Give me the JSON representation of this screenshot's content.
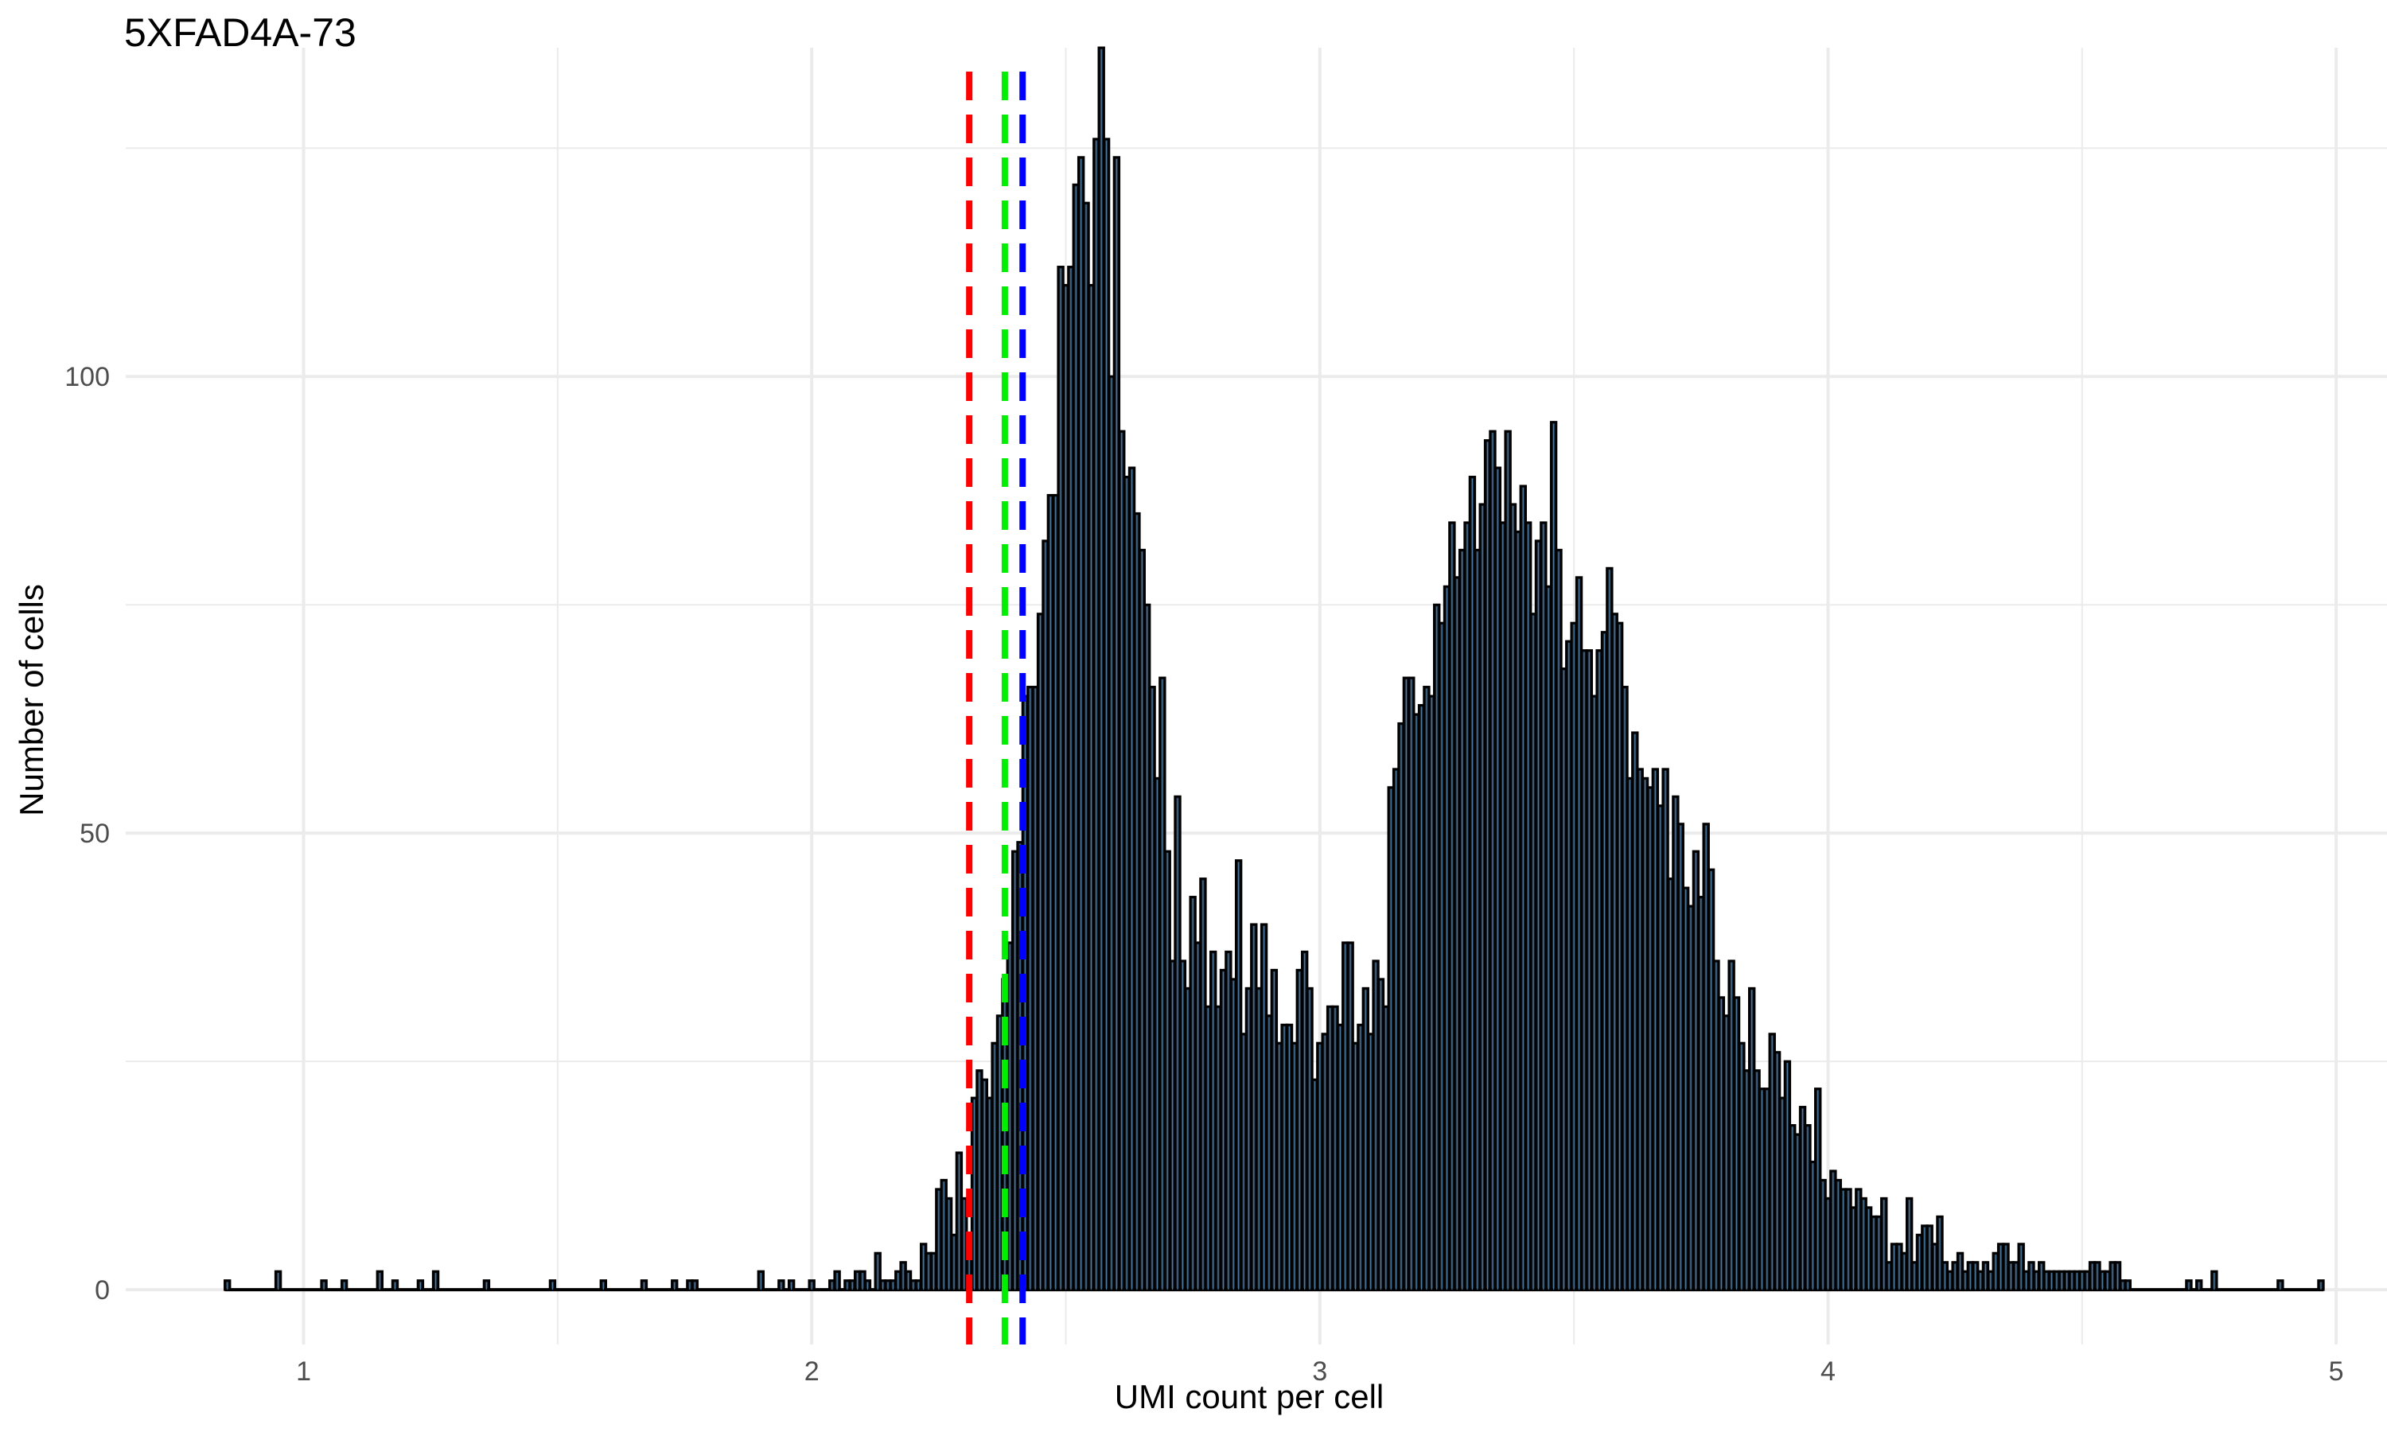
{
  "chart_data": {
    "type": "bar",
    "title": "5XFAD4A-73",
    "xlabel": "UMI count per cell",
    "ylabel": "Number of cells",
    "xlim": [
      0.65,
      5.1
    ],
    "ylim": [
      -6,
      136
    ],
    "x_ticks": [
      1,
      2,
      3,
      4,
      5
    ],
    "y_ticks": [
      0,
      50,
      100
    ],
    "grid": true,
    "bin_width": 0.01,
    "bar_fill": "#1d2b3a",
    "bar_edge": "#000000",
    "bar_inner_line": "#5b8fb9",
    "threshold_lines": [
      {
        "x": 2.31,
        "color": "#ff0000",
        "style": "dashed"
      },
      {
        "x": 2.38,
        "color": "#00ee00",
        "style": "dashed"
      },
      {
        "x": 2.415,
        "color": "#0000ff",
        "style": "dashed"
      }
    ],
    "bins": [
      [
        0.85,
        1
      ],
      [
        0.95,
        2
      ],
      [
        1.04,
        1
      ],
      [
        1.08,
        1
      ],
      [
        1.15,
        2
      ],
      [
        1.18,
        1
      ],
      [
        1.23,
        1
      ],
      [
        1.26,
        2
      ],
      [
        1.36,
        1
      ],
      [
        1.49,
        1
      ],
      [
        1.59,
        1
      ],
      [
        1.67,
        1
      ],
      [
        1.73,
        1
      ],
      [
        1.76,
        1
      ],
      [
        1.77,
        1
      ],
      [
        1.9,
        2
      ],
      [
        1.94,
        1
      ],
      [
        1.96,
        1
      ],
      [
        2.0,
        1
      ],
      [
        2.04,
        1
      ],
      [
        2.05,
        2
      ],
      [
        2.07,
        1
      ],
      [
        2.08,
        1
      ],
      [
        2.09,
        2
      ],
      [
        2.1,
        2
      ],
      [
        2.11,
        1
      ],
      [
        2.13,
        4
      ],
      [
        2.14,
        1
      ],
      [
        2.15,
        1
      ],
      [
        2.16,
        1
      ],
      [
        2.17,
        2
      ],
      [
        2.18,
        3
      ],
      [
        2.19,
        2
      ],
      [
        2.2,
        1
      ],
      [
        2.21,
        1
      ],
      [
        2.22,
        5
      ],
      [
        2.23,
        4
      ],
      [
        2.24,
        4
      ],
      [
        2.25,
        11
      ],
      [
        2.26,
        12
      ],
      [
        2.27,
        10
      ],
      [
        2.28,
        6
      ],
      [
        2.29,
        15
      ],
      [
        2.3,
        10
      ],
      [
        2.31,
        5
      ],
      [
        2.32,
        21
      ],
      [
        2.33,
        24
      ],
      [
        2.34,
        23
      ],
      [
        2.35,
        21
      ],
      [
        2.36,
        27
      ],
      [
        2.37,
        30
      ],
      [
        2.38,
        34
      ],
      [
        2.39,
        38
      ],
      [
        2.4,
        48
      ],
      [
        2.41,
        49
      ],
      [
        2.42,
        65
      ],
      [
        2.43,
        66
      ],
      [
        2.44,
        66
      ],
      [
        2.45,
        74
      ],
      [
        2.46,
        82
      ],
      [
        2.47,
        87
      ],
      [
        2.48,
        87
      ],
      [
        2.49,
        112
      ],
      [
        2.5,
        110
      ],
      [
        2.51,
        112
      ],
      [
        2.52,
        121
      ],
      [
        2.53,
        124
      ],
      [
        2.54,
        119
      ],
      [
        2.55,
        110
      ],
      [
        2.56,
        126
      ],
      [
        2.57,
        136
      ],
      [
        2.58,
        126
      ],
      [
        2.59,
        100
      ],
      [
        2.6,
        124
      ],
      [
        2.61,
        94
      ],
      [
        2.62,
        89
      ],
      [
        2.63,
        90
      ],
      [
        2.64,
        85
      ],
      [
        2.65,
        81
      ],
      [
        2.66,
        75
      ],
      [
        2.67,
        66
      ],
      [
        2.68,
        56
      ],
      [
        2.69,
        67
      ],
      [
        2.7,
        48
      ],
      [
        2.71,
        36
      ],
      [
        2.72,
        54
      ],
      [
        2.73,
        36
      ],
      [
        2.74,
        33
      ],
      [
        2.75,
        43
      ],
      [
        2.76,
        38
      ],
      [
        2.77,
        45
      ],
      [
        2.78,
        31
      ],
      [
        2.79,
        37
      ],
      [
        2.8,
        31
      ],
      [
        2.81,
        35
      ],
      [
        2.82,
        37
      ],
      [
        2.83,
        34
      ],
      [
        2.84,
        47
      ],
      [
        2.85,
        28
      ],
      [
        2.86,
        33
      ],
      [
        2.87,
        40
      ],
      [
        2.88,
        33
      ],
      [
        2.89,
        40
      ],
      [
        2.9,
        30
      ],
      [
        2.91,
        35
      ],
      [
        2.92,
        27
      ],
      [
        2.93,
        29
      ],
      [
        2.94,
        29
      ],
      [
        2.95,
        27
      ],
      [
        2.96,
        35
      ],
      [
        2.97,
        37
      ],
      [
        2.98,
        33
      ],
      [
        2.99,
        23
      ],
      [
        3.0,
        27
      ],
      [
        3.01,
        28
      ],
      [
        3.02,
        31
      ],
      [
        3.03,
        31
      ],
      [
        3.04,
        29
      ],
      [
        3.05,
        38
      ],
      [
        3.06,
        38
      ],
      [
        3.07,
        27
      ],
      [
        3.08,
        29
      ],
      [
        3.09,
        33
      ],
      [
        3.1,
        28
      ],
      [
        3.11,
        36
      ],
      [
        3.12,
        34
      ],
      [
        3.13,
        31
      ],
      [
        3.14,
        55
      ],
      [
        3.15,
        57
      ],
      [
        3.16,
        62
      ],
      [
        3.17,
        67
      ],
      [
        3.18,
        67
      ],
      [
        3.19,
        63
      ],
      [
        3.2,
        64
      ],
      [
        3.21,
        66
      ],
      [
        3.22,
        65
      ],
      [
        3.23,
        75
      ],
      [
        3.24,
        73
      ],
      [
        3.25,
        77
      ],
      [
        3.26,
        84
      ],
      [
        3.27,
        78
      ],
      [
        3.28,
        81
      ],
      [
        3.29,
        84
      ],
      [
        3.3,
        89
      ],
      [
        3.31,
        81
      ],
      [
        3.32,
        86
      ],
      [
        3.33,
        93
      ],
      [
        3.34,
        94
      ],
      [
        3.35,
        90
      ],
      [
        3.36,
        84
      ],
      [
        3.37,
        94
      ],
      [
        3.38,
        86
      ],
      [
        3.39,
        83
      ],
      [
        3.4,
        88
      ],
      [
        3.41,
        84
      ],
      [
        3.42,
        74
      ],
      [
        3.43,
        82
      ],
      [
        3.44,
        84
      ],
      [
        3.45,
        77
      ],
      [
        3.46,
        95
      ],
      [
        3.47,
        81
      ],
      [
        3.48,
        68
      ],
      [
        3.49,
        71
      ],
      [
        3.5,
        73
      ],
      [
        3.51,
        78
      ],
      [
        3.52,
        70
      ],
      [
        3.53,
        70
      ],
      [
        3.54,
        65
      ],
      [
        3.55,
        70
      ],
      [
        3.56,
        72
      ],
      [
        3.57,
        79
      ],
      [
        3.58,
        74
      ],
      [
        3.59,
        73
      ],
      [
        3.6,
        66
      ],
      [
        3.61,
        56
      ],
      [
        3.62,
        61
      ],
      [
        3.63,
        57
      ],
      [
        3.64,
        56
      ],
      [
        3.65,
        55
      ],
      [
        3.66,
        57
      ],
      [
        3.67,
        53
      ],
      [
        3.68,
        57
      ],
      [
        3.69,
        45
      ],
      [
        3.7,
        54
      ],
      [
        3.71,
        51
      ],
      [
        3.72,
        44
      ],
      [
        3.73,
        42
      ],
      [
        3.74,
        48
      ],
      [
        3.75,
        43
      ],
      [
        3.76,
        51
      ],
      [
        3.77,
        46
      ],
      [
        3.78,
        36
      ],
      [
        3.79,
        32
      ],
      [
        3.8,
        30
      ],
      [
        3.81,
        36
      ],
      [
        3.82,
        32
      ],
      [
        3.83,
        27
      ],
      [
        3.84,
        24
      ],
      [
        3.85,
        33
      ],
      [
        3.86,
        24
      ],
      [
        3.87,
        22
      ],
      [
        3.88,
        22
      ],
      [
        3.89,
        28
      ],
      [
        3.9,
        26
      ],
      [
        3.91,
        21
      ],
      [
        3.92,
        25
      ],
      [
        3.93,
        18
      ],
      [
        3.94,
        17
      ],
      [
        3.95,
        20
      ],
      [
        3.96,
        18
      ],
      [
        3.97,
        14
      ],
      [
        3.98,
        22
      ],
      [
        3.99,
        12
      ],
      [
        4.0,
        10
      ],
      [
        4.01,
        13
      ],
      [
        4.02,
        12
      ],
      [
        4.03,
        11
      ],
      [
        4.04,
        11
      ],
      [
        4.05,
        9
      ],
      [
        4.06,
        11
      ],
      [
        4.07,
        10
      ],
      [
        4.08,
        9
      ],
      [
        4.09,
        8
      ],
      [
        4.1,
        8
      ],
      [
        4.11,
        10
      ],
      [
        4.12,
        3
      ],
      [
        4.13,
        5
      ],
      [
        4.14,
        5
      ],
      [
        4.15,
        4
      ],
      [
        4.16,
        10
      ],
      [
        4.17,
        3
      ],
      [
        4.18,
        6
      ],
      [
        4.19,
        7
      ],
      [
        4.2,
        7
      ],
      [
        4.21,
        5
      ],
      [
        4.22,
        8
      ],
      [
        4.23,
        3
      ],
      [
        4.24,
        2
      ],
      [
        4.25,
        3
      ],
      [
        4.26,
        4
      ],
      [
        4.27,
        2
      ],
      [
        4.28,
        3
      ],
      [
        4.29,
        3
      ],
      [
        4.3,
        2
      ],
      [
        4.31,
        3
      ],
      [
        4.32,
        2
      ],
      [
        4.33,
        4
      ],
      [
        4.34,
        5
      ],
      [
        4.35,
        5
      ],
      [
        4.36,
        3
      ],
      [
        4.37,
        3
      ],
      [
        4.38,
        5
      ],
      [
        4.39,
        2
      ],
      [
        4.4,
        3
      ],
      [
        4.41,
        2
      ],
      [
        4.42,
        3
      ],
      [
        4.43,
        2
      ],
      [
        4.44,
        2
      ],
      [
        4.45,
        2
      ],
      [
        4.46,
        2
      ],
      [
        4.47,
        2
      ],
      [
        4.48,
        2
      ],
      [
        4.49,
        2
      ],
      [
        4.5,
        2
      ],
      [
        4.51,
        2
      ],
      [
        4.52,
        3
      ],
      [
        4.53,
        3
      ],
      [
        4.54,
        2
      ],
      [
        4.55,
        2
      ],
      [
        4.56,
        3
      ],
      [
        4.57,
        3
      ],
      [
        4.58,
        1
      ],
      [
        4.59,
        1
      ],
      [
        4.71,
        1
      ],
      [
        4.73,
        1
      ],
      [
        4.76,
        2
      ],
      [
        4.89,
        1
      ],
      [
        4.97,
        1
      ]
    ]
  }
}
